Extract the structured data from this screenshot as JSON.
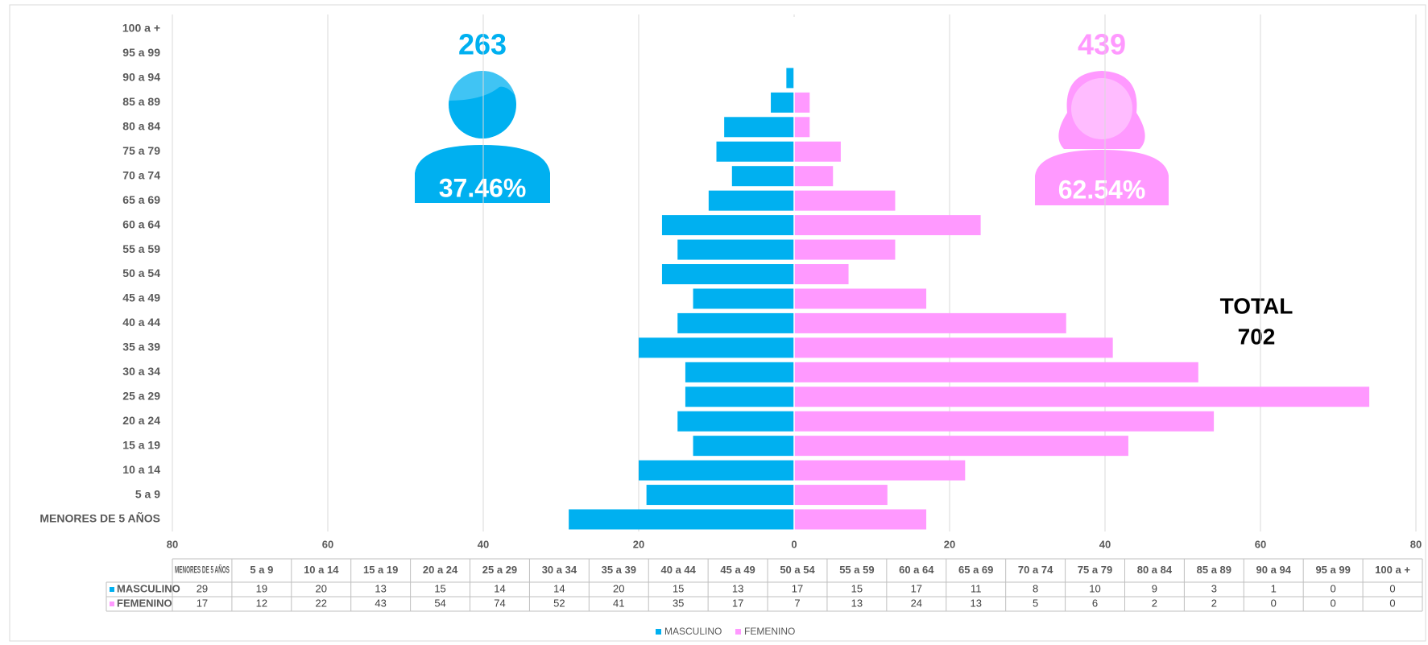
{
  "chart_data": {
    "type": "bar",
    "categories": [
      "MENORES DE 5 AÑOS",
      "5 a 9",
      "10 a 14",
      "15 a 19",
      "20 a 24",
      "25 a 29",
      "30 a 34",
      "35 a 39",
      "40 a 44",
      "45 a 49",
      "50 a 54",
      "55 a 59",
      "60 a 64",
      "65 a 69",
      "70 a 74",
      "75 a 79",
      "80 a 84",
      "85 a 89",
      "90 a 94",
      "95 a 99",
      "100 a +"
    ],
    "series": [
      {
        "name": "MASCULINO",
        "color": "#00b0f0",
        "values": [
          29,
          19,
          20,
          13,
          15,
          14,
          14,
          20,
          15,
          13,
          17,
          15,
          17,
          11,
          8,
          10,
          9,
          3,
          1,
          0,
          0
        ]
      },
      {
        "name": "FEMENINO",
        "color": "#ff99ff",
        "values": [
          17,
          12,
          22,
          43,
          54,
          74,
          52,
          41,
          35,
          17,
          7,
          13,
          24,
          13,
          5,
          6,
          2,
          2,
          0,
          0,
          0
        ]
      }
    ],
    "xlim": [
      -80,
      80
    ],
    "xticks": [
      {
        "value": -80,
        "label": "80"
      },
      {
        "value": -60,
        "label": "60"
      },
      {
        "value": -40,
        "label": "40"
      },
      {
        "value": -20,
        "label": "20"
      },
      0,
      20,
      40,
      60,
      80
    ],
    "grid": true,
    "annotations": [
      "263",
      "37.46%",
      "439",
      "62.54%",
      "TOTAL",
      "702"
    ]
  }
}
